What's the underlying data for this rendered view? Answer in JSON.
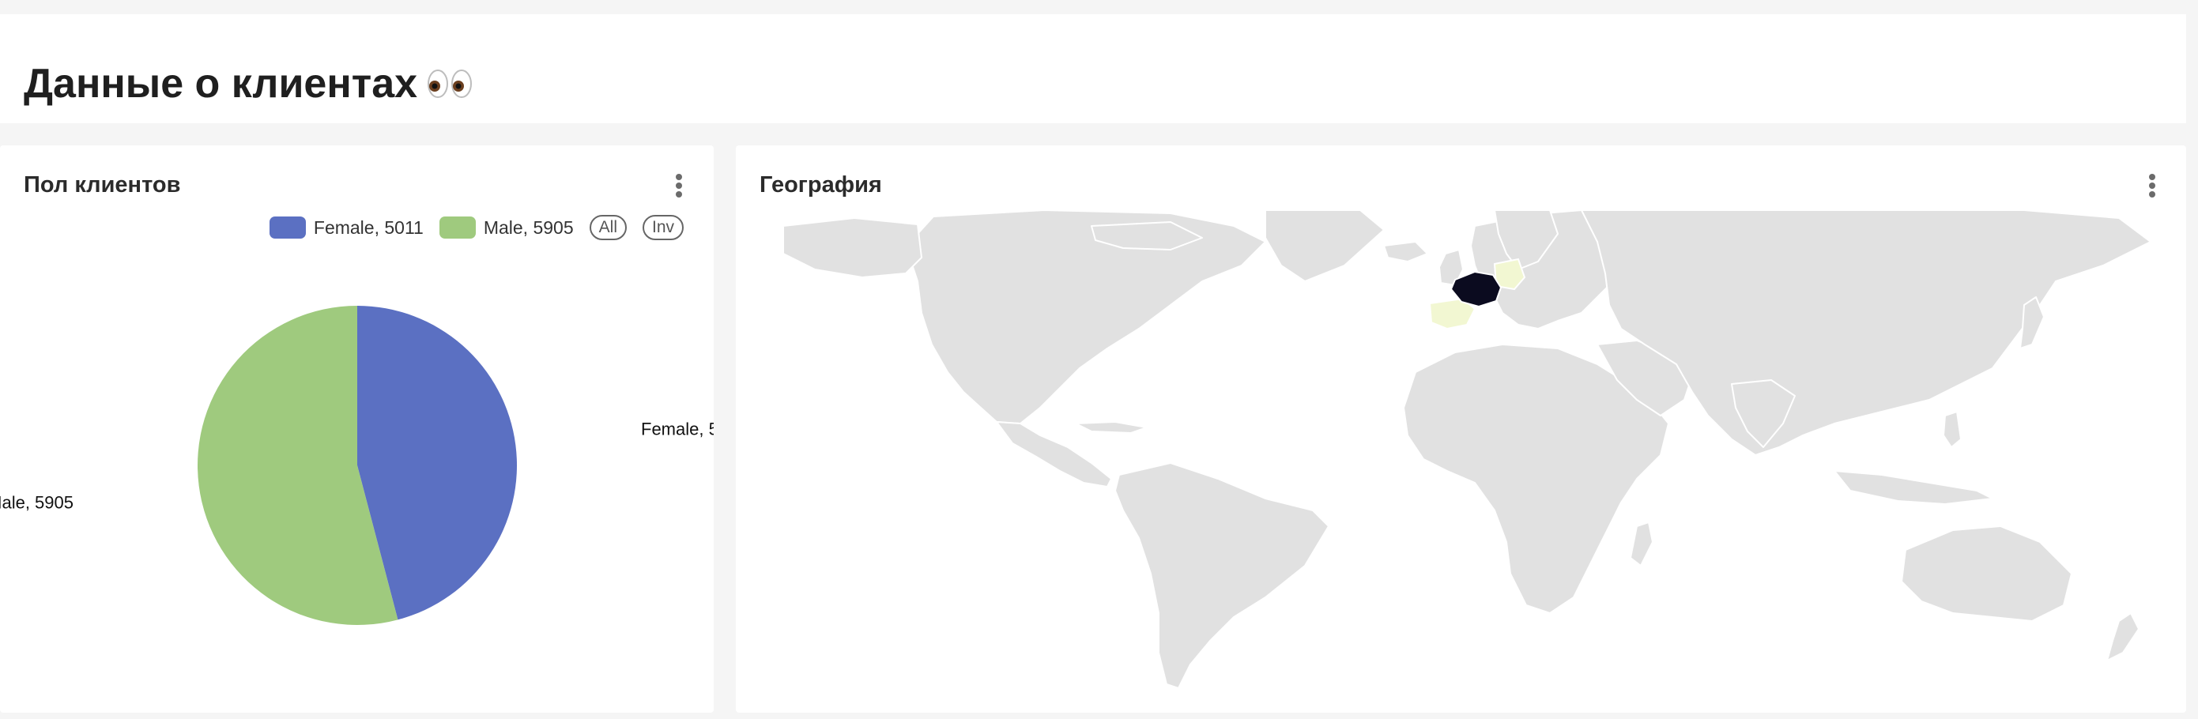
{
  "page": {
    "title": "Данные о клиентах"
  },
  "gender_card": {
    "title": "Пол клиентов",
    "legend_all": "All",
    "legend_inv": "Inv"
  },
  "geo_card": {
    "title": "География"
  },
  "colors": {
    "female": "#5b70c2",
    "male": "#9fca7e",
    "land": "#e1e1e1",
    "ocean": "#ffffff",
    "highlight_high": "#0b0b1f",
    "highlight_low": "#f2f7d2"
  },
  "chart_data": [
    {
      "type": "pie",
      "series": [
        {
          "name": "Female",
          "value": 5011,
          "label": "Female, 5011"
        },
        {
          "name": "Male",
          "value": 5905,
          "label": "Male, 5905"
        }
      ],
      "legend_placement": "top-right"
    },
    {
      "type": "choropleth",
      "regions": [
        {
          "name": "France",
          "level": "high"
        },
        {
          "name": "Spain",
          "level": "low"
        },
        {
          "name": "Germany",
          "level": "low"
        }
      ]
    }
  ]
}
